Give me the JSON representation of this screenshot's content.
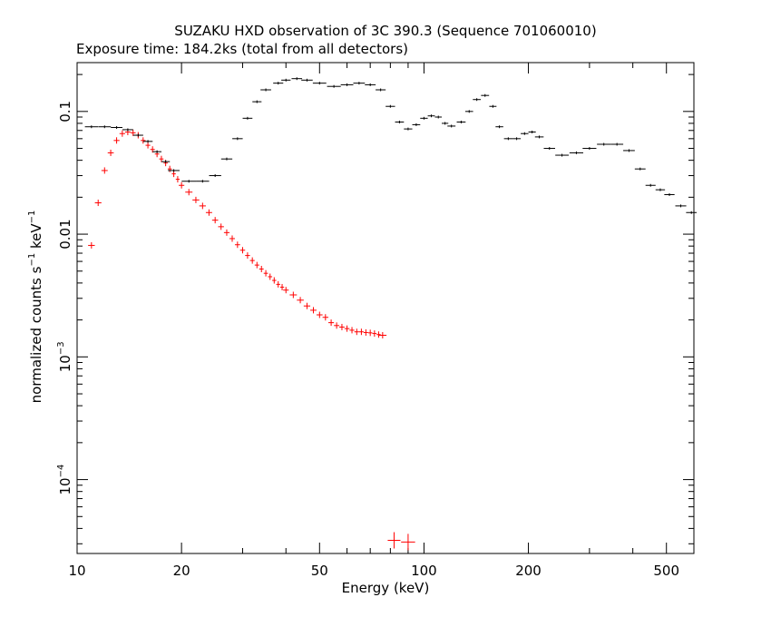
{
  "chart_data": {
    "type": "scatter",
    "title": "SUZAKU HXD observation of 3C 390.3 (Sequence 701060010)",
    "subtitle": "Exposure time: 184.2ks (total from all detectors)",
    "xlabel": "Energy (keV)",
    "ylabel": {
      "main": "normalized counts s",
      "exp1": "−1",
      "mid": " keV",
      "exp2": "−1"
    },
    "x_scale": "log",
    "y_scale": "log",
    "xlim": [
      10,
      600
    ],
    "ylim": [
      2.5e-05,
      0.25
    ],
    "grid": false,
    "x_ticks": [
      {
        "value": 10,
        "label": "10"
      },
      {
        "value": 20,
        "label": "20"
      },
      {
        "value": 50,
        "label": "50"
      },
      {
        "value": 100,
        "label": "100"
      },
      {
        "value": 200,
        "label": "200"
      },
      {
        "value": 500,
        "label": "500"
      }
    ],
    "y_ticks": [
      {
        "value": 0.0001,
        "base": "10",
        "exp": "−4"
      },
      {
        "value": 0.001,
        "base": "10",
        "exp": "−3"
      },
      {
        "value": 0.01,
        "base": "0.01",
        "exp": ""
      },
      {
        "value": 0.1,
        "base": "0.1",
        "exp": ""
      }
    ],
    "series": [
      {
        "color": "#ff0000",
        "points": [
          [
            11.0,
            0.0081
          ],
          [
            11.5,
            0.018
          ],
          [
            12.0,
            0.033
          ],
          [
            12.5,
            0.046
          ],
          [
            13.0,
            0.058
          ],
          [
            13.5,
            0.066
          ],
          [
            14.0,
            0.068
          ],
          [
            14.5,
            0.067
          ],
          [
            15.0,
            0.064
          ],
          [
            15.5,
            0.058
          ],
          [
            16.0,
            0.053
          ],
          [
            16.5,
            0.049
          ],
          [
            17.0,
            0.045
          ],
          [
            17.5,
            0.041
          ],
          [
            18.0,
            0.038
          ],
          [
            18.5,
            0.034
          ],
          [
            19.0,
            0.031
          ],
          [
            19.5,
            0.028
          ],
          [
            20.0,
            0.025
          ],
          [
            21.0,
            0.022
          ],
          [
            22.0,
            0.019
          ],
          [
            23.0,
            0.017
          ],
          [
            24.0,
            0.015
          ],
          [
            25.0,
            0.013
          ],
          [
            26.0,
            0.0115
          ],
          [
            27.0,
            0.0103
          ],
          [
            28.0,
            0.0092
          ],
          [
            29.0,
            0.0082
          ],
          [
            30.0,
            0.0074
          ],
          [
            31.0,
            0.0067
          ],
          [
            32.0,
            0.0061
          ],
          [
            33.0,
            0.0056
          ],
          [
            34.0,
            0.0052
          ],
          [
            35.0,
            0.0048
          ],
          [
            36.0,
            0.0045
          ],
          [
            37.0,
            0.0042
          ],
          [
            38.0,
            0.0039
          ],
          [
            39.0,
            0.0037
          ],
          [
            40.0,
            0.0035
          ],
          [
            42.0,
            0.0032
          ],
          [
            44.0,
            0.0029
          ],
          [
            46.0,
            0.0026
          ],
          [
            48.0,
            0.0024
          ],
          [
            50.0,
            0.0022
          ],
          [
            52.0,
            0.0021
          ],
          [
            54.0,
            0.0019
          ],
          [
            56.0,
            0.0018
          ],
          [
            58.0,
            0.00175
          ],
          [
            60.0,
            0.0017
          ],
          [
            62.0,
            0.00165
          ],
          [
            64.0,
            0.0016
          ],
          [
            66.0,
            0.0016
          ],
          [
            68.0,
            0.00158
          ],
          [
            70.0,
            0.00157
          ],
          [
            72.0,
            0.00155
          ],
          [
            74.0,
            0.00152
          ],
          [
            76.0,
            0.0015
          ],
          [
            82.0,
            3.2e-05
          ],
          [
            90.0,
            3.1e-05
          ]
        ]
      },
      {
        "color": "#000000",
        "points": [
          [
            11.0,
            0.075
          ],
          [
            12.0,
            0.075
          ],
          [
            13.0,
            0.074
          ],
          [
            14.0,
            0.071
          ],
          [
            15.0,
            0.064
          ],
          [
            16.0,
            0.057
          ],
          [
            17.0,
            0.047
          ],
          [
            18.0,
            0.039
          ],
          [
            19.0,
            0.033
          ],
          [
            21.0,
            0.027
          ],
          [
            23.0,
            0.027
          ],
          [
            25.0,
            0.03
          ],
          [
            27.0,
            0.041
          ],
          [
            29.0,
            0.06
          ],
          [
            31.0,
            0.088
          ],
          [
            33.0,
            0.12
          ],
          [
            35.0,
            0.15
          ],
          [
            38.0,
            0.17
          ],
          [
            40.0,
            0.18
          ],
          [
            43.0,
            0.185
          ],
          [
            46.0,
            0.18
          ],
          [
            50.0,
            0.17
          ],
          [
            55.0,
            0.16
          ],
          [
            60.0,
            0.165
          ],
          [
            65.0,
            0.17
          ],
          [
            70.0,
            0.165
          ],
          [
            75.0,
            0.15
          ],
          [
            80.0,
            0.11
          ],
          [
            85.0,
            0.082
          ],
          [
            90.0,
            0.072
          ],
          [
            95.0,
            0.078
          ],
          [
            100.0,
            0.088
          ],
          [
            105.0,
            0.092
          ],
          [
            110.0,
            0.09
          ],
          [
            115.0,
            0.08
          ],
          [
            120.0,
            0.076
          ],
          [
            128.0,
            0.082
          ],
          [
            135.0,
            0.1
          ],
          [
            142.0,
            0.125
          ],
          [
            150.0,
            0.135
          ],
          [
            158.0,
            0.11
          ],
          [
            165.0,
            0.075
          ],
          [
            175.0,
            0.06
          ],
          [
            185.0,
            0.06
          ],
          [
            195.0,
            0.066
          ],
          [
            205.0,
            0.068
          ],
          [
            215.0,
            0.062
          ],
          [
            230.0,
            0.05
          ],
          [
            250.0,
            0.044
          ],
          [
            275.0,
            0.046
          ],
          [
            300.0,
            0.05
          ],
          [
            330.0,
            0.054
          ],
          [
            360.0,
            0.054
          ],
          [
            390.0,
            0.048
          ],
          [
            420.0,
            0.034
          ],
          [
            450.0,
            0.025
          ],
          [
            480.0,
            0.023
          ],
          [
            510.0,
            0.021
          ],
          [
            550.0,
            0.017
          ],
          [
            590.0,
            0.015
          ]
        ]
      }
    ]
  }
}
